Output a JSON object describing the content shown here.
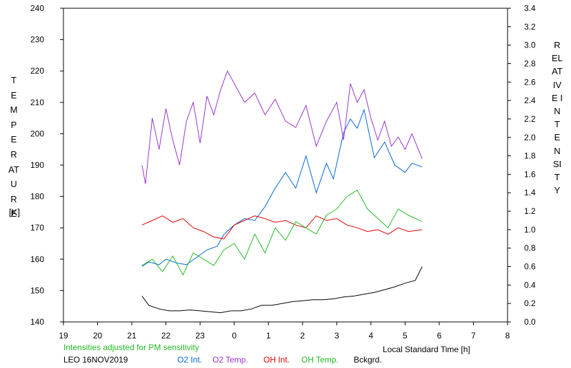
{
  "chart_data": {
    "type": "line",
    "xlabel": "Local Standard Time [h]",
    "ylabel_left": "TEMPERATURE",
    "ylabel_left_unit": "[K]",
    "ylabel_right": "RELATIVE INTENSITY",
    "x_ticks": [
      19,
      20,
      21,
      22,
      23,
      0,
      1,
      2,
      3,
      4,
      5,
      6,
      7,
      8
    ],
    "xlim": [
      19,
      32
    ],
    "ylim_left": [
      140,
      240
    ],
    "y_ticks_left": [
      140,
      150,
      160,
      170,
      180,
      190,
      200,
      210,
      220,
      230,
      240
    ],
    "ylim_right": [
      0.0,
      3.4
    ],
    "y_ticks_right": [
      "0.0",
      "0.2",
      "0.4",
      "0.6",
      "0.8",
      "1.0",
      "1.2",
      "1.4",
      "1.6",
      "1.8",
      "2.0",
      "2.2",
      "2.4",
      "2.6",
      "2.8",
      "3.0",
      "3.2",
      "3.4"
    ],
    "note": "Intensities adjusted for PM sensitivity",
    "station": "LEO 16NOV2019",
    "series": [
      {
        "name": "O2 Int.",
        "axis": "right",
        "color": "#0066dd",
        "x": [
          21.3,
          21.5,
          21.8,
          22.0,
          22.3,
          22.6,
          22.9,
          23.2,
          23.5,
          23.7,
          24.0,
          24.3,
          24.6,
          24.9,
          25.2,
          25.5,
          25.8,
          26.1,
          26.4,
          26.7,
          26.9,
          27.2,
          27.4,
          27.6,
          27.8,
          28.1,
          28.4,
          28.7,
          29.0,
          29.2,
          29.5
        ],
        "y": [
          0.6,
          0.65,
          0.62,
          0.68,
          0.64,
          0.62,
          0.7,
          0.78,
          0.82,
          0.95,
          1.05,
          1.12,
          1.1,
          1.25,
          1.45,
          1.62,
          1.45,
          1.8,
          1.4,
          1.72,
          1.55,
          2.05,
          2.2,
          2.1,
          2.3,
          1.78,
          1.95,
          1.7,
          1.62,
          1.72,
          1.68
        ]
      },
      {
        "name": "O2 Temp.",
        "axis": "left",
        "color": "#9933cc",
        "x": [
          21.3,
          21.4,
          21.6,
          21.8,
          22.0,
          22.2,
          22.4,
          22.6,
          22.8,
          23.0,
          23.2,
          23.4,
          23.6,
          23.8,
          24.0,
          24.3,
          24.6,
          24.9,
          25.2,
          25.5,
          25.8,
          26.1,
          26.4,
          26.7,
          27.0,
          27.2,
          27.4,
          27.6,
          27.8,
          28.0,
          28.2,
          28.4,
          28.6,
          28.8,
          29.0,
          29.2,
          29.5
        ],
        "y": [
          190,
          184,
          205,
          195,
          208,
          198,
          190,
          204,
          210,
          197,
          212,
          206,
          214,
          220,
          216,
          210,
          213,
          206,
          211,
          204,
          202,
          209,
          196,
          204,
          210,
          198,
          216,
          210,
          214,
          205,
          198,
          204,
          196,
          199,
          195,
          200,
          192
        ]
      },
      {
        "name": "OH Int.",
        "axis": "right",
        "color": "#dd0000",
        "x": [
          21.3,
          21.6,
          21.9,
          22.2,
          22.5,
          22.8,
          23.1,
          23.4,
          23.7,
          24.0,
          24.3,
          24.6,
          24.9,
          25.2,
          25.5,
          25.8,
          26.1,
          26.4,
          26.7,
          27.0,
          27.3,
          27.6,
          27.9,
          28.2,
          28.5,
          28.8,
          29.1,
          29.5
        ],
        "y": [
          1.05,
          1.1,
          1.15,
          1.08,
          1.12,
          1.02,
          0.98,
          0.92,
          0.9,
          1.05,
          1.1,
          1.15,
          1.12,
          1.08,
          1.1,
          1.05,
          1.02,
          1.15,
          1.1,
          1.12,
          1.05,
          1.02,
          0.98,
          1.0,
          0.95,
          1.02,
          0.98,
          1.0
        ]
      },
      {
        "name": "OH Temp.",
        "axis": "left",
        "color": "#22bb22",
        "x": [
          21.3,
          21.6,
          21.9,
          22.2,
          22.5,
          22.8,
          23.1,
          23.4,
          23.7,
          24.0,
          24.3,
          24.6,
          24.9,
          25.2,
          25.5,
          25.8,
          26.1,
          26.4,
          26.7,
          27.0,
          27.3,
          27.6,
          27.9,
          28.2,
          28.5,
          28.8,
          29.1,
          29.5
        ],
        "y": [
          158,
          160,
          156,
          161,
          155,
          162,
          160,
          158,
          163,
          165,
          160,
          168,
          162,
          170,
          166,
          172,
          170,
          168,
          174,
          176,
          180,
          182,
          176,
          173,
          170,
          176,
          174,
          172
        ]
      },
      {
        "name": "Bckgrd.",
        "axis": "right",
        "color": "#000000",
        "x": [
          21.3,
          21.5,
          21.8,
          22.1,
          22.4,
          22.7,
          23.0,
          23.3,
          23.6,
          23.9,
          24.2,
          24.5,
          24.8,
          25.1,
          25.4,
          25.7,
          26.0,
          26.3,
          26.6,
          26.9,
          27.2,
          27.5,
          27.8,
          28.1,
          28.4,
          28.7,
          29.0,
          29.3,
          29.5
        ],
        "y": [
          0.28,
          0.18,
          0.14,
          0.12,
          0.12,
          0.13,
          0.12,
          0.11,
          0.1,
          0.12,
          0.12,
          0.14,
          0.18,
          0.18,
          0.2,
          0.22,
          0.23,
          0.24,
          0.24,
          0.25,
          0.27,
          0.28,
          0.3,
          0.32,
          0.35,
          0.38,
          0.42,
          0.45,
          0.6
        ]
      }
    ]
  }
}
